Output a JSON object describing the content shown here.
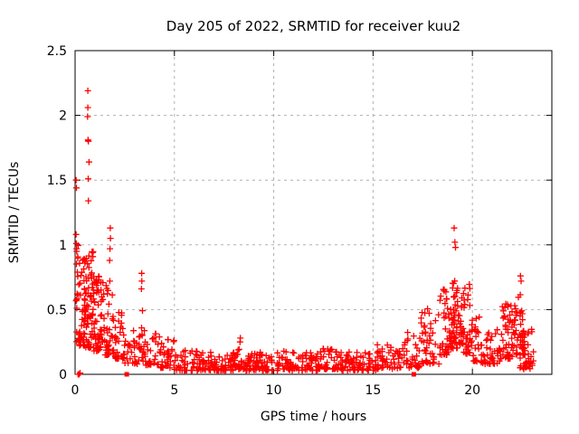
{
  "chart_data": {
    "type": "scatter",
    "title": "Day 205 of 2022, SRMTID for receiver kuu2",
    "xlabel": "GPS time / hours",
    "ylabel": "SRMTID / TECUs",
    "xlim": [
      0,
      24
    ],
    "ylim": [
      0,
      2.5
    ],
    "xticks": {
      "values": [
        0,
        5,
        10,
        15,
        20
      ],
      "labels": [
        "0",
        "5",
        "10",
        "15",
        "20"
      ]
    },
    "yticks": {
      "values": [
        0,
        0.5,
        1,
        1.5,
        2,
        2.5
      ],
      "labels": [
        "0",
        "0.5",
        "1",
        "1.5",
        "2",
        "2.5"
      ]
    },
    "grid": {
      "on": true,
      "color": "#b0b0b0",
      "dash": "3 4"
    },
    "legend": "none",
    "marker": {
      "glyph": "plus",
      "size": 7,
      "color": "#ff0000",
      "stroke_width": 1.3
    },
    "border_color": "#000000",
    "background": "#ffffff",
    "seed": 205,
    "series_note": "dense GPS TID scatter, ~1300 points approximated by envelope segments",
    "envelope_segments": [
      {
        "x0": 0.03,
        "x1": 0.18,
        "n": 16,
        "ymin": 0.25,
        "ymax": 1.05,
        "bias": 1.2,
        "peak": false
      },
      {
        "x0": 0.18,
        "x1": 0.55,
        "n": 45,
        "ymin": 0.22,
        "ymax": 0.9,
        "bias": 1.6,
        "peak": false
      },
      {
        "x0": 0.45,
        "x1": 0.95,
        "n": 70,
        "ymin": 0.2,
        "ymax": 0.95,
        "bias": 1.5,
        "peak": false
      },
      {
        "x0": 0.95,
        "x1": 1.35,
        "n": 50,
        "ymin": 0.18,
        "ymax": 0.8,
        "bias": 1.7,
        "peak": false
      },
      {
        "x0": 1.35,
        "x1": 1.95,
        "n": 45,
        "ymin": 0.15,
        "ymax": 0.72,
        "bias": 1.8,
        "peak": false
      },
      {
        "x0": 1.95,
        "x1": 2.45,
        "n": 30,
        "ymin": 0.12,
        "ymax": 0.5,
        "bias": 1.8,
        "peak": false
      },
      {
        "x0": 2.45,
        "x1": 3.15,
        "n": 26,
        "ymin": 0.08,
        "ymax": 0.35,
        "bias": 1.8,
        "peak": false
      },
      {
        "x0": 3.2,
        "x1": 3.55,
        "n": 22,
        "ymin": 0.1,
        "ymax": 0.62,
        "bias": 1.5,
        "peak": true
      },
      {
        "x0": 3.55,
        "x1": 4.3,
        "n": 30,
        "ymin": 0.07,
        "ymax": 0.32,
        "bias": 2,
        "peak": false
      },
      {
        "x0": 4.3,
        "x1": 5.0,
        "n": 34,
        "ymin": 0.05,
        "ymax": 0.27,
        "bias": 2,
        "peak": false
      },
      {
        "x0": 5.0,
        "x1": 6.5,
        "n": 62,
        "ymin": 0.03,
        "ymax": 0.19,
        "bias": 2,
        "peak": false
      },
      {
        "x0": 6.5,
        "x1": 8.0,
        "n": 68,
        "ymin": 0.03,
        "ymax": 0.17,
        "bias": 2,
        "peak": false
      },
      {
        "x0": 8.0,
        "x1": 8.6,
        "n": 28,
        "ymin": 0.04,
        "ymax": 0.27,
        "bias": 1.8,
        "peak": true
      },
      {
        "x0": 8.6,
        "x1": 10.2,
        "n": 70,
        "ymin": 0.03,
        "ymax": 0.17,
        "bias": 2,
        "peak": false
      },
      {
        "x0": 10.2,
        "x1": 10.8,
        "n": 26,
        "ymin": 0.04,
        "ymax": 0.23,
        "bias": 1.8,
        "peak": true
      },
      {
        "x0": 10.8,
        "x1": 12.2,
        "n": 60,
        "ymin": 0.03,
        "ymax": 0.17,
        "bias": 2,
        "peak": false
      },
      {
        "x0": 12.2,
        "x1": 13.2,
        "n": 42,
        "ymin": 0.04,
        "ymax": 0.2,
        "bias": 2,
        "peak": false
      },
      {
        "x0": 13.2,
        "x1": 15.2,
        "n": 80,
        "ymin": 0.03,
        "ymax": 0.18,
        "bias": 2,
        "peak": false
      },
      {
        "x0": 15.2,
        "x1": 16.3,
        "n": 45,
        "ymin": 0.04,
        "ymax": 0.23,
        "bias": 2,
        "peak": false
      },
      {
        "x0": 16.3,
        "x1": 17.35,
        "n": 40,
        "ymin": 0.05,
        "ymax": 0.45,
        "bias": 1.8,
        "peak": true
      },
      {
        "x0": 17.35,
        "x1": 18.35,
        "n": 45,
        "ymin": 0.08,
        "ymax": 0.52,
        "bias": 1.8,
        "peak": false
      },
      {
        "x0": 18.35,
        "x1": 18.85,
        "n": 35,
        "ymin": 0.15,
        "ymax": 0.68,
        "bias": 1.6,
        "peak": false
      },
      {
        "x0": 18.85,
        "x1": 19.55,
        "n": 75,
        "ymin": 0.2,
        "ymax": 1.05,
        "bias": 1.4,
        "peak": true
      },
      {
        "x0": 19.55,
        "x1": 19.9,
        "n": 28,
        "ymin": 0.15,
        "ymax": 0.7,
        "bias": 1.6,
        "peak": false
      },
      {
        "x0": 19.9,
        "x1": 20.35,
        "n": 26,
        "ymin": 0.1,
        "ymax": 0.45,
        "bias": 1.7,
        "peak": false
      },
      {
        "x0": 20.35,
        "x1": 21.4,
        "n": 45,
        "ymin": 0.08,
        "ymax": 0.35,
        "bias": 1.8,
        "peak": false
      },
      {
        "x0": 21.4,
        "x1": 22.0,
        "n": 42,
        "ymin": 0.12,
        "ymax": 0.55,
        "bias": 1.6,
        "peak": false
      },
      {
        "x0": 21.95,
        "x1": 22.65,
        "n": 50,
        "ymin": 0.15,
        "ymax": 0.75,
        "bias": 1.5,
        "peak": true
      },
      {
        "x0": 22.4,
        "x1": 23.1,
        "n": 40,
        "ymin": 0.04,
        "ymax": 0.35,
        "bias": 1.8,
        "peak": false
      }
    ],
    "outlier_points": [
      [
        0.64,
        2.19
      ],
      [
        0.64,
        2.06
      ],
      [
        0.63,
        1.99
      ],
      [
        0.65,
        1.81
      ],
      [
        0.67,
        1.8
      ],
      [
        0.7,
        1.64
      ],
      [
        0.66,
        1.51
      ],
      [
        0.67,
        1.34
      ],
      [
        0.05,
        1.5
      ],
      [
        0.07,
        1.44
      ],
      [
        0.05,
        1.08
      ],
      [
        0.06,
        1.01
      ],
      [
        0.08,
        0.95
      ],
      [
        1.77,
        1.13
      ],
      [
        1.78,
        1.05
      ],
      [
        1.76,
        0.97
      ],
      [
        1.74,
        0.88
      ],
      [
        3.35,
        0.78
      ],
      [
        3.36,
        0.72
      ],
      [
        3.34,
        0.66
      ],
      [
        19.08,
        1.13
      ],
      [
        19.12,
        1.02
      ],
      [
        19.15,
        0.98
      ],
      [
        8.32,
        0.28
      ],
      [
        8.3,
        0.25
      ],
      [
        22.42,
        0.76
      ],
      [
        22.45,
        0.72
      ],
      [
        0.2,
        0.0
      ],
      [
        0.25,
        0.01
      ],
      [
        0.15,
        0.0
      ]
    ],
    "square_markers": {
      "glyph": "filled-square",
      "size": 5,
      "color": "#ff0000",
      "points": [
        [
          2.6,
          0
        ],
        [
          17.05,
          0
        ]
      ]
    }
  }
}
